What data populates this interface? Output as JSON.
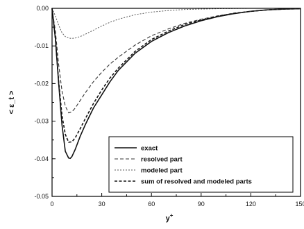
{
  "chart_data": {
    "type": "line",
    "title": "",
    "xlabel": "y+",
    "ylabel": "< ε_t >",
    "xlim": [
      0,
      150
    ],
    "ylim": [
      -0.05,
      0.0
    ],
    "xticks": [
      0,
      30,
      60,
      90,
      120,
      150
    ],
    "yticks": [
      -0.05,
      -0.04,
      -0.03,
      -0.02,
      -0.01,
      0.0
    ],
    "xtick_labels": [
      "0",
      "30",
      "60",
      "90",
      "120",
      "150"
    ],
    "ytick_labels": [
      "-0.05",
      "-0.04",
      "-0.03",
      "-0.02",
      "-0.01",
      "0.00"
    ],
    "grid": false,
    "legend_position": "bottom-right",
    "series": [
      {
        "name": "exact",
        "style": "solid",
        "x": [
          0,
          2,
          4,
          6,
          8,
          10,
          11,
          12,
          14,
          17,
          20,
          25,
          30,
          35,
          40,
          50,
          60,
          70,
          80,
          90,
          100,
          110,
          120,
          130,
          140,
          150
        ],
        "y": [
          0.0,
          -0.008,
          -0.02,
          -0.031,
          -0.038,
          -0.0398,
          -0.0399,
          -0.0394,
          -0.0375,
          -0.034,
          -0.031,
          -0.0265,
          -0.023,
          -0.0195,
          -0.0165,
          -0.012,
          -0.0088,
          -0.0065,
          -0.0047,
          -0.0033,
          -0.0022,
          -0.0014,
          -0.0008,
          -0.0004,
          -0.0002,
          -0.0001
        ]
      },
      {
        "name": "resolved part",
        "style": "dashed",
        "x": [
          0,
          2,
          4,
          6,
          8,
          10,
          12,
          14,
          17,
          20,
          25,
          30,
          35,
          40,
          50,
          60,
          70,
          80,
          90,
          100,
          110,
          120,
          130,
          140,
          150
        ],
        "y": [
          0.0,
          -0.006,
          -0.015,
          -0.022,
          -0.026,
          -0.0278,
          -0.0275,
          -0.0265,
          -0.0245,
          -0.0225,
          -0.0195,
          -0.017,
          -0.0148,
          -0.013,
          -0.0098,
          -0.0073,
          -0.0055,
          -0.004,
          -0.0029,
          -0.002,
          -0.0013,
          -0.0008,
          -0.0004,
          -0.0002,
          -0.0001
        ]
      },
      {
        "name": "modeled part",
        "style": "dotted",
        "x": [
          0,
          2,
          4,
          6,
          8,
          10,
          12,
          14,
          17,
          20,
          25,
          30,
          35,
          40,
          50,
          60,
          70,
          80,
          90,
          100,
          120,
          150
        ],
        "y": [
          0.0,
          -0.002,
          -0.0045,
          -0.0065,
          -0.0075,
          -0.0079,
          -0.008,
          -0.0079,
          -0.0075,
          -0.0069,
          -0.0058,
          -0.0047,
          -0.0037,
          -0.0029,
          -0.0017,
          -0.001,
          -0.0006,
          -0.0003,
          -0.0002,
          -0.0001,
          0.0,
          0.0
        ]
      },
      {
        "name": "sum of resolved and modeled parts",
        "style": "heavy-dashed",
        "x": [
          0,
          2,
          4,
          6,
          8,
          10,
          12,
          14,
          17,
          20,
          25,
          30,
          35,
          40,
          50,
          60,
          70,
          80,
          90,
          100,
          110,
          120,
          130,
          140,
          150
        ],
        "y": [
          0.0,
          -0.008,
          -0.0195,
          -0.0285,
          -0.0335,
          -0.0356,
          -0.0355,
          -0.0344,
          -0.032,
          -0.0294,
          -0.0253,
          -0.0217,
          -0.0185,
          -0.0159,
          -0.0115,
          -0.0083,
          -0.0061,
          -0.0043,
          -0.0031,
          -0.0021,
          -0.0013,
          -0.0008,
          -0.0004,
          -0.0002,
          -0.0001
        ]
      }
    ]
  },
  "legend": {
    "items": [
      "exact",
      "resolved part",
      "modeled part",
      "sum of resolved and modeled parts"
    ]
  }
}
